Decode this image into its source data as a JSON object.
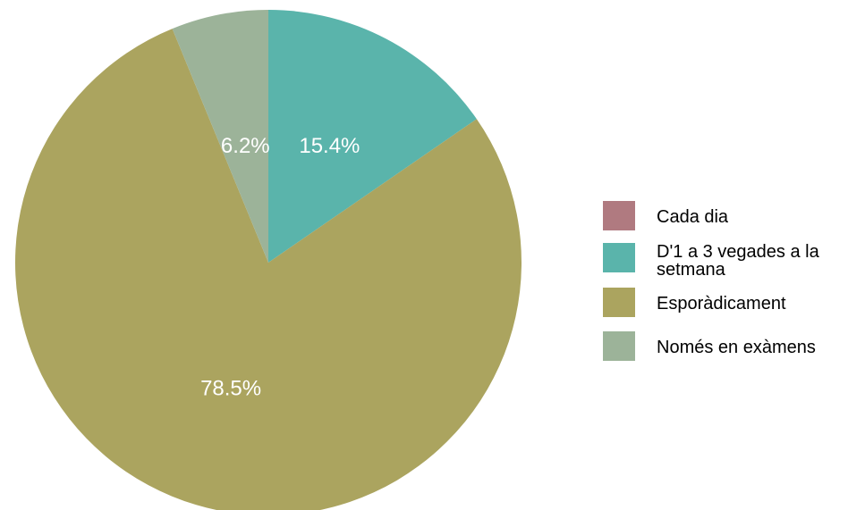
{
  "chart_data": {
    "type": "pie",
    "slices": [
      {
        "name": "Cada dia",
        "value": 0.0,
        "label": "",
        "color": "#b07a80"
      },
      {
        "name": "D'1 a 3 vegades a la setmana",
        "value": 15.4,
        "label": "15.4%",
        "color": "#5ab4ab"
      },
      {
        "name": "Esporàdicament",
        "value": 78.5,
        "label": "78.5%",
        "color": "#aba45f"
      },
      {
        "name": "Només en exàmens",
        "value": 6.2,
        "label": "6.2%",
        "color": "#9cb399"
      }
    ],
    "start_angle": "12 o'clock",
    "direction": "clockwise",
    "legend": {
      "position": "right",
      "entries": [
        {
          "lines": [
            "Cada dia"
          ],
          "color": "#b07a80"
        },
        {
          "lines": [
            "D'1 a 3 vegades a la",
            "setmana"
          ],
          "color": "#5ab4ab"
        },
        {
          "lines": [
            "Esporàdicament"
          ],
          "color": "#aba45f"
        },
        {
          "lines": [
            "Només en exàmens"
          ],
          "color": "#9cb399"
        }
      ]
    }
  }
}
